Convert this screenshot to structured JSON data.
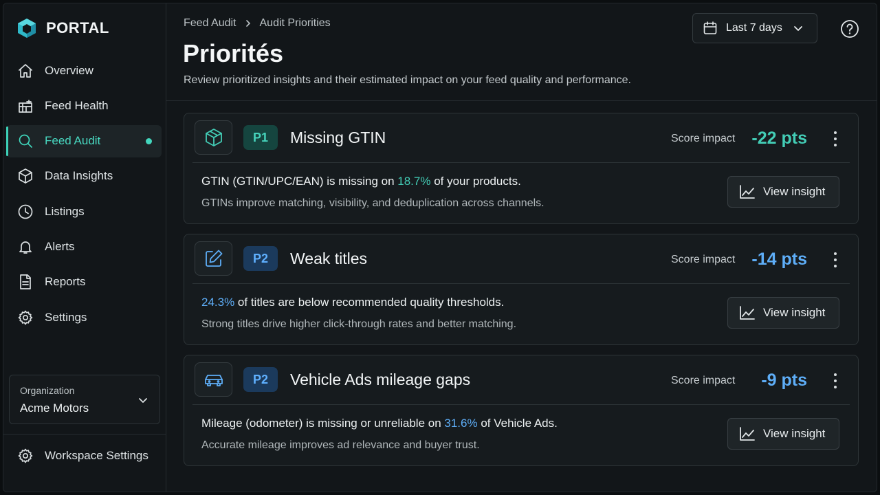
{
  "brand": {
    "name": "PORTAL",
    "accent": "#3dd2b8"
  },
  "sidebar": {
    "items": [
      {
        "label": "Overview",
        "icon": "home-icon"
      },
      {
        "label": "Feed Health",
        "icon": "feed-health-icon"
      },
      {
        "label": "Feed Audit",
        "icon": "search-icon",
        "active": true
      },
      {
        "label": "Data Insights",
        "icon": "cube-icon"
      },
      {
        "label": "Listings",
        "icon": "clock-icon"
      },
      {
        "label": "Alerts",
        "icon": "bell-icon"
      },
      {
        "label": "Reports",
        "icon": "document-icon"
      },
      {
        "label": "Settings",
        "icon": "gear-icon"
      }
    ],
    "organization": {
      "label": "Organization",
      "value": "Acme Motors"
    },
    "workspace_settings": {
      "label": "Workspace Settings",
      "icon": "gear-icon"
    }
  },
  "header": {
    "breadcrumb": [
      "Feed Audit",
      "Audit Priorities"
    ],
    "title": "Priorités",
    "description": "Review prioritized insights and their estimated impact on your feed quality and performance.",
    "date_range": "Last 7 days"
  },
  "cards": [
    {
      "icon": "package-icon",
      "priority": "P1",
      "title": "Missing GTIN",
      "score_label": "Score impact",
      "score_value": "-22 pts",
      "line1_pre": "GTIN (GTIN/UPC/EAN) is missing on ",
      "line1_highlight": "18.7%",
      "line1_post": " of your products.",
      "line2": "GTINs improve matching, visibility, and deduplication across channels.",
      "button": "View insight",
      "color": "#43cdb6"
    },
    {
      "icon": "edit-icon",
      "priority": "P2",
      "title": "Weak titles",
      "score_label": "Score impact",
      "score_value": "-14 pts",
      "line1_pre": "",
      "line1_highlight": "24.3%",
      "line1_post": " of titles are below recommended quality thresholds.",
      "line2": "Strong titles drive higher click-through rates and better matching.",
      "button": "View insight",
      "color": "#5eaef8"
    },
    {
      "icon": "car-icon",
      "priority": "P2",
      "title": "Vehicle Ads mileage gaps",
      "score_label": "Score impact",
      "score_value": "-9 pts",
      "line1_pre": "Mileage (odometer) is missing or unreliable on ",
      "line1_highlight": "31.6%",
      "line1_post": " of Vehicle Ads.",
      "line2": "Accurate mileage improves ad relevance and buyer trust.",
      "button": "View insight",
      "color": "#5eaef8"
    }
  ]
}
